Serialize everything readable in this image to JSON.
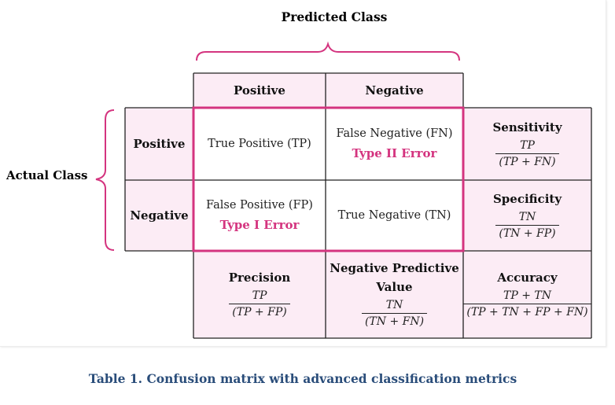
{
  "header": {
    "predicted_class": "Predicted Class",
    "actual_class": "Actual Class"
  },
  "columns": {
    "positive": "Positive",
    "negative": "Negative"
  },
  "rows": {
    "positive": "Positive",
    "negative": "Negative"
  },
  "cells": {
    "tp": "True Positive (TP)",
    "fn": "False Negative (FN)",
    "fn_error": "Type II Error",
    "fp": "False Positive (FP)",
    "fp_error": "Type I Error",
    "tn": "True Negative (TN)"
  },
  "metrics": {
    "sensitivity": {
      "label": "Sensitivity",
      "num": "TP",
      "den": "(TP + FN)"
    },
    "specificity": {
      "label": "Specificity",
      "num": "TN",
      "den": "(TN + FP)"
    },
    "precision": {
      "label": "Precision",
      "num": "TP",
      "den": "(TP + FP)"
    },
    "npv": {
      "label_line1": "Negative Predictive",
      "label_line2": "Value",
      "num": "TN",
      "den": "(TN + FN)"
    },
    "accuracy": {
      "label": "Accuracy",
      "num": "TP + TN",
      "den": "(TP + TN + FP + FN)"
    }
  },
  "caption": "Table 1. Confusion matrix with advanced classification metrics",
  "colors": {
    "pink_fill": "#fcecf5",
    "accent": "#d4347f",
    "caption": "#2a4d7a"
  }
}
